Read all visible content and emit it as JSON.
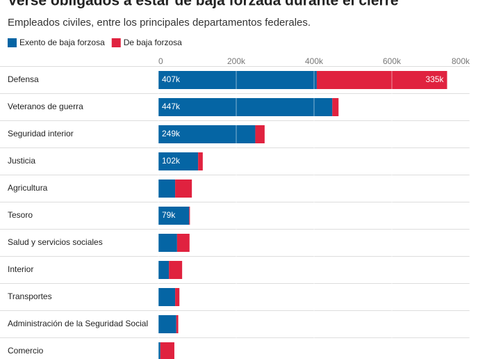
{
  "chart_data": {
    "type": "stacked-bar-horizontal",
    "title": "Verse obligados a estar de baja forzada durante el cierre",
    "subtitle": "Empleados civiles, entre los principales departamentos federales.",
    "categories": [
      "Defensa",
      "Veteranos de guerra",
      "Seguridad interior",
      "Justicia",
      "Agricultura",
      "Tesoro",
      "Salud y servicios sociales",
      "Interior",
      "Transportes",
      "Administración de la Seguridad Social",
      "Comercio"
    ],
    "series": [
      {
        "name": "Exento de baja forzosa",
        "color": "#0565a4",
        "values": [
          407000,
          447000,
          249000,
          102000,
          43000,
          79000,
          48000,
          27000,
          43000,
          46000,
          5000
        ],
        "value_labels": [
          "407k",
          "447k",
          "249k",
          "102k",
          null,
          "79k",
          null,
          null,
          null,
          null,
          null
        ]
      },
      {
        "name": "De baja forzosa",
        "color": "#e0223f",
        "values": [
          335000,
          16000,
          24000,
          12000,
          43000,
          2000,
          32000,
          34000,
          11000,
          5000,
          36000
        ],
        "value_labels": [
          "335k",
          null,
          null,
          null,
          null,
          null,
          null,
          null,
          null,
          null,
          null
        ]
      }
    ],
    "xlim": [
      0,
      800000
    ],
    "xticks": [
      0,
      {
        "value": 200000,
        "label": "200k"
      },
      {
        "value": 400000,
        "label": "400k"
      },
      {
        "value": 600000,
        "label": "600k"
      },
      {
        "value": 800000,
        "label": "800k"
      }
    ],
    "grid": true
  }
}
